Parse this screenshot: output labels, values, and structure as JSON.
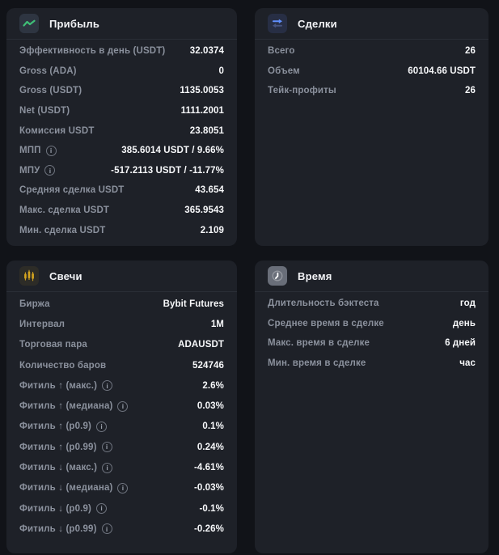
{
  "theme": {
    "page_bg": "#111318",
    "card_bg": "#1e2128",
    "divider": "#2a2e36",
    "label_color": "#8b919d",
    "value_color": "#f7f8fa",
    "accent_green": "#3fbf77",
    "accent_blue": "#6090ff",
    "accent_blue_dim": "#47537e",
    "accent_amber": "#d6a51f",
    "accent_gray": "#696e79"
  },
  "cards": [
    {
      "title": "Прибыль",
      "icon": "trend-up-icon",
      "rows": [
        {
          "label": "Эффективность в день (USDT)",
          "value": "32.0374",
          "info": false
        },
        {
          "label": "Gross (ADA)",
          "value": "0",
          "info": false
        },
        {
          "label": "Gross (USDT)",
          "value": "1135.0053",
          "info": false
        },
        {
          "label": "Net (USDT)",
          "value": "1111.2001",
          "info": false
        },
        {
          "label": "Комиссия USDT",
          "value": "23.8051",
          "info": false
        },
        {
          "label": "МПП",
          "value": "385.6014 USDT / 9.66%",
          "info": true
        },
        {
          "label": "МПУ",
          "value": "-517.2113 USDT / -11.77%",
          "info": true
        },
        {
          "label": "Средняя сделка USDT",
          "value": "43.654",
          "info": false
        },
        {
          "label": "Макс. сделка USDT",
          "value": "365.9543",
          "info": false
        },
        {
          "label": "Мин. сделка USDT",
          "value": "2.109",
          "info": false
        }
      ]
    },
    {
      "title": "Сделки",
      "icon": "swap-arrows-icon",
      "rows": [
        {
          "label": "Всего",
          "value": "26",
          "info": false
        },
        {
          "label": "Объем",
          "value": "60104.66 USDT",
          "info": false
        },
        {
          "label": "Тейк-профиты",
          "value": "26",
          "info": false
        }
      ]
    },
    {
      "title": "Свечи",
      "icon": "candles-icon",
      "rows": [
        {
          "label": "Биржа",
          "value": "Bybit Futures",
          "info": false
        },
        {
          "label": "Интервал",
          "value": "1M",
          "info": false
        },
        {
          "label": "Торговая пара",
          "value": "ADAUSDT",
          "info": false
        },
        {
          "label": "Количество баров",
          "value": "524746",
          "info": false
        },
        {
          "label": "Фитиль ↑ (макс.)",
          "value": "2.6%",
          "info": true
        },
        {
          "label": "Фитиль ↑ (медиана)",
          "value": "0.03%",
          "info": true
        },
        {
          "label": "Фитиль ↑ (p0.9)",
          "value": "0.1%",
          "info": true
        },
        {
          "label": "Фитиль ↑ (p0.99)",
          "value": "0.24%",
          "info": true
        },
        {
          "label": "Фитиль ↓ (макс.)",
          "value": "-4.61%",
          "info": true
        },
        {
          "label": "Фитиль ↓ (медиана)",
          "value": "-0.03%",
          "info": true
        },
        {
          "label": "Фитиль ↓ (p0.9)",
          "value": "-0.1%",
          "info": true
        },
        {
          "label": "Фитиль ↓ (p0.99)",
          "value": "-0.26%",
          "info": true
        }
      ]
    },
    {
      "title": "Время",
      "icon": "clock-icon",
      "rows": [
        {
          "label": "Длительность бэктеста",
          "value": "год",
          "info": false
        },
        {
          "label": "Среднее время в сделке",
          "value": "день",
          "info": false
        },
        {
          "label": "Макс. время в сделке",
          "value": "6 дней",
          "info": false
        },
        {
          "label": "Мин. время в сделке",
          "value": "час",
          "info": false
        }
      ]
    }
  ]
}
